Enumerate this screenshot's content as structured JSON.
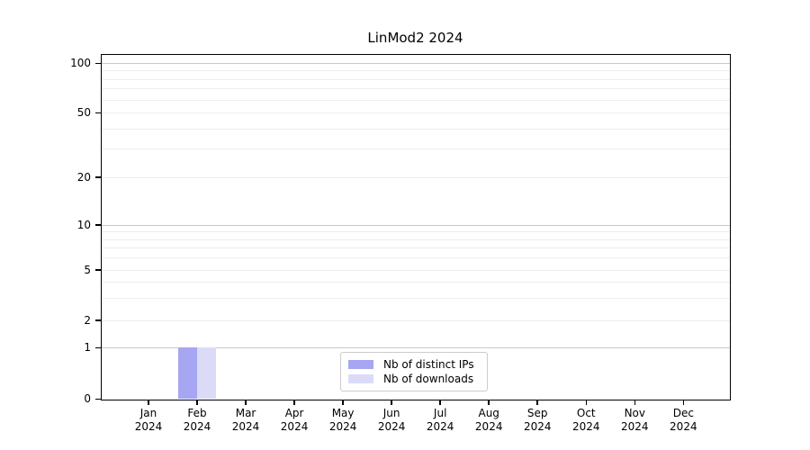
{
  "title": "LinMod2 2024",
  "chart_data": {
    "type": "bar",
    "title": "LinMod2 2024",
    "categories": [
      "Jan 2024",
      "Feb 2024",
      "Mar 2024",
      "Apr 2024",
      "May 2024",
      "Jun 2024",
      "Jul 2024",
      "Aug 2024",
      "Sep 2024",
      "Oct 2024",
      "Nov 2024",
      "Dec 2024"
    ],
    "series": [
      {
        "name": "Nb of distinct IPs",
        "color": "#a6a6f2",
        "values": [
          0,
          1,
          0,
          0,
          0,
          0,
          0,
          0,
          0,
          0,
          0,
          0
        ]
      },
      {
        "name": "Nb of downloads",
        "color": "#dbdbf8",
        "values": [
          0,
          1,
          0,
          0,
          0,
          0,
          0,
          0,
          0,
          0,
          0,
          0
        ]
      }
    ],
    "y_axis": {
      "scale": "log-like-with-zero",
      "tick_labels": [
        "100",
        "50",
        "20",
        "10",
        "5",
        "2",
        "1",
        "0"
      ],
      "tick_values": [
        100,
        50,
        20,
        10,
        5,
        2,
        1,
        0
      ],
      "major_grid_values": [
        1,
        10,
        100
      ],
      "minor_grid_values": [
        2,
        3,
        4,
        5,
        6,
        7,
        8,
        9,
        20,
        30,
        40,
        50,
        60,
        70,
        80,
        90
      ],
      "range": [
        0,
        100
      ]
    },
    "legend": {
      "position": "lower center",
      "entries": [
        "Nb of distinct IPs",
        "Nb of downloads"
      ]
    },
    "colors": {
      "major_grid": "#c9c9c9",
      "minor_grid": "#ededed",
      "spine": "#000000",
      "text": "#000000",
      "legend_border": "#cccccc",
      "background": "#ffffff"
    }
  }
}
